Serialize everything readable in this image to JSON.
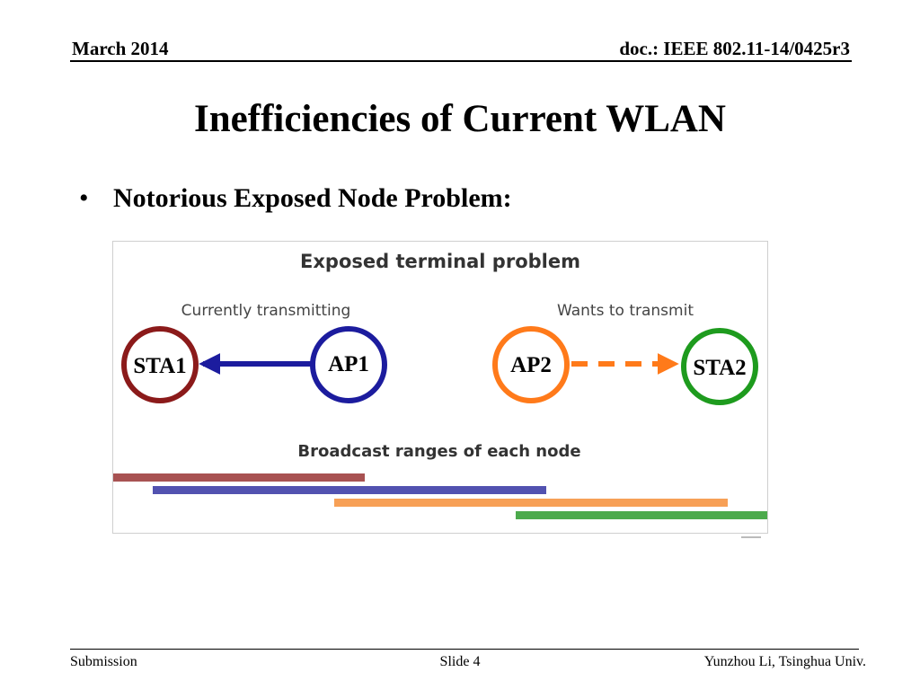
{
  "header": {
    "date": "March 2014",
    "doc_id": "doc.: IEEE 802.11-14/0425r3"
  },
  "slide": {
    "title": "Inefficiencies of Current WLAN",
    "bullets": [
      "Notorious Exposed Node Problem:"
    ]
  },
  "figure": {
    "title": "Exposed terminal problem",
    "left_caption": "Currently transmitting",
    "right_caption": "Wants to transmit",
    "nodes": [
      {
        "label": "STA1",
        "color": "#8b1a1a"
      },
      {
        "label": "AP1",
        "color": "#1c1c9e"
      },
      {
        "label": "AP2",
        "color": "#ff7a1a"
      },
      {
        "label": "STA2",
        "color": "#1e9b1e"
      }
    ],
    "arrow_colors": {
      "solid": "#1c1c9e",
      "dashed": "#ff7a1a"
    },
    "ranges_title": "Broadcast ranges of each node",
    "range_colors": [
      "#a85252",
      "#5252b0",
      "#f7a056",
      "#4caa4c"
    ]
  },
  "footer": {
    "left": "Submission",
    "center": "Slide 4",
    "right": "Yunzhou Li, Tsinghua Univ."
  }
}
